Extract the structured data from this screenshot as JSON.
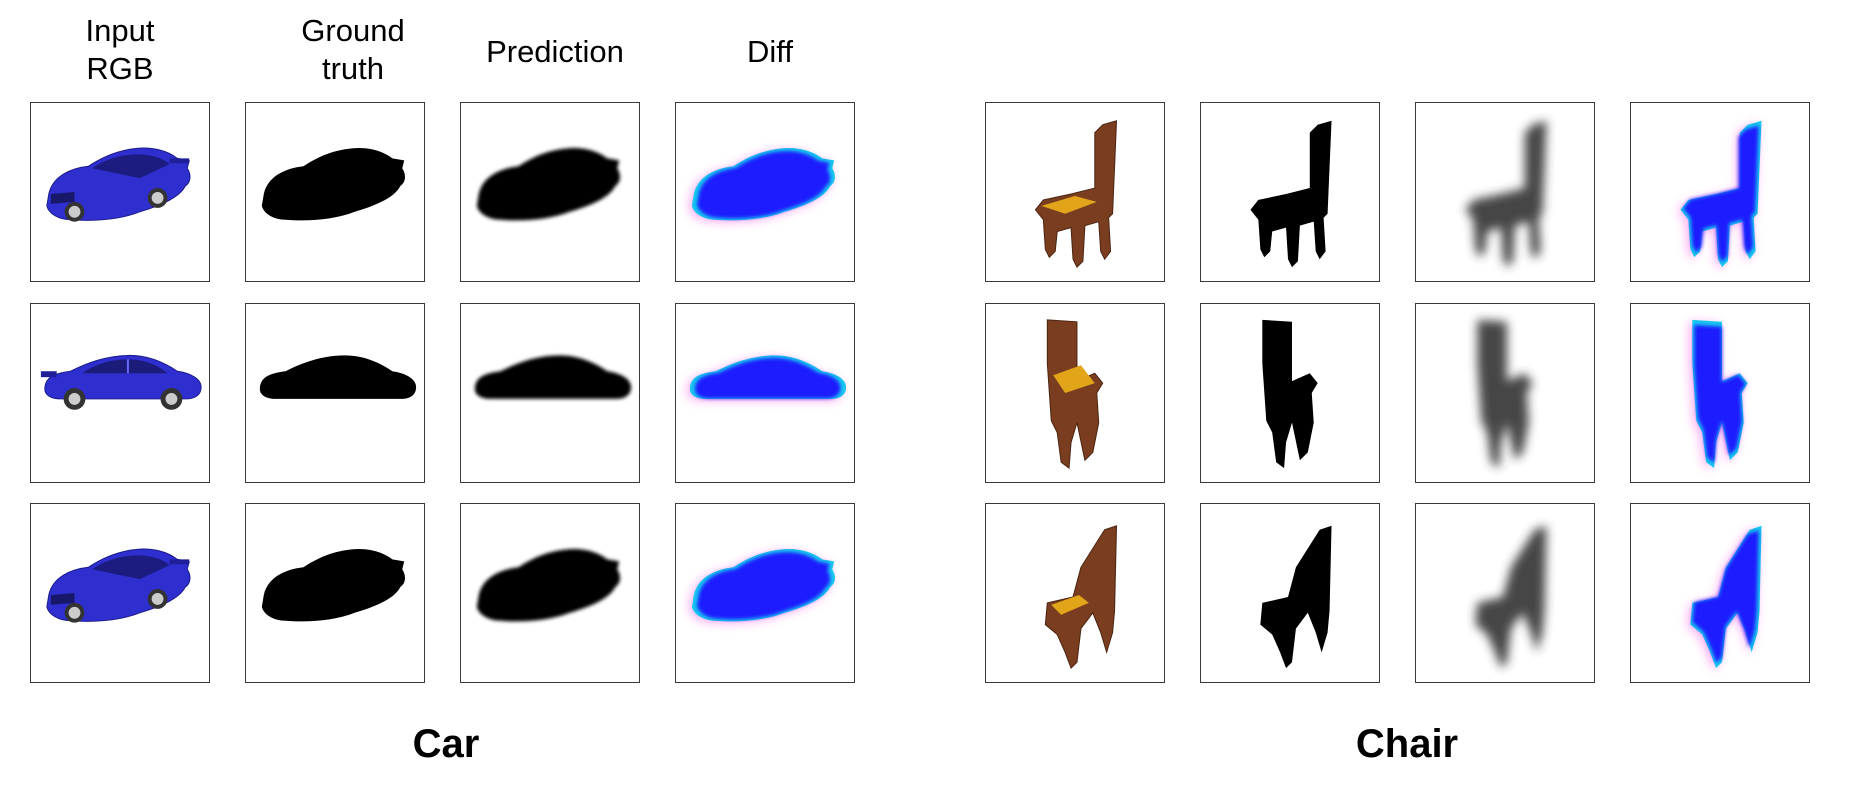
{
  "column_headers": [
    "Input\nRGB",
    "Ground\ntruth",
    "Prediction",
    "Diff"
  ],
  "groups": [
    {
      "label": "Car",
      "rows": [
        {
          "view": "car-3q",
          "panels": [
            "input-rgb",
            "ground-truth",
            "prediction",
            "diff"
          ]
        },
        {
          "view": "car-side",
          "panels": [
            "input-rgb",
            "ground-truth",
            "prediction",
            "diff"
          ]
        },
        {
          "view": "car-3q",
          "panels": [
            "input-rgb",
            "ground-truth",
            "prediction",
            "diff"
          ]
        }
      ]
    },
    {
      "label": "Chair",
      "rows": [
        {
          "view": "chair-3q",
          "panels": [
            "input-rgb",
            "ground-truth",
            "prediction",
            "diff"
          ]
        },
        {
          "view": "chair-side",
          "panels": [
            "input-rgb",
            "ground-truth",
            "prediction",
            "diff"
          ]
        },
        {
          "view": "chair-back",
          "panels": [
            "input-rgb",
            "ground-truth",
            "prediction",
            "diff"
          ]
        }
      ]
    }
  ],
  "colors": {
    "car_body": "#2f2fd0",
    "chair_wood": "#7a3d1f",
    "chair_seat": "#e2a51a",
    "diff_main": "#1a1aff",
    "diff_cyan": "#19c8f0",
    "diff_magenta": "#ff4fe0",
    "mask": "#000000"
  }
}
